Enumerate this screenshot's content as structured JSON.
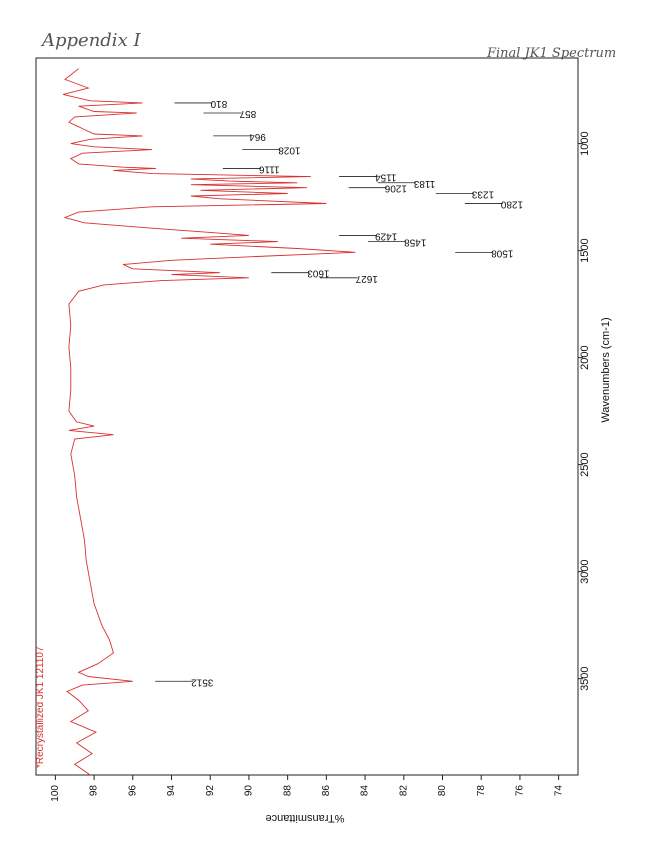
{
  "handwritten": {
    "appendix": "Appendix I",
    "spectrum_title": "Final JK1 Spectrum"
  },
  "chart_data": {
    "type": "line",
    "orientation": "rotated-90-clockwise",
    "xlabel": "Wavenumbers (cm-1)",
    "ylabel": "%Transmittance",
    "xlim": [
      600,
      3950
    ],
    "ylim": [
      73,
      101
    ],
    "x_ticks": [
      "1000",
      "1500",
      "2000",
      "2500",
      "3000",
      "3500"
    ],
    "y_ticks": [
      "100",
      "98",
      "96",
      "94",
      "92",
      "90",
      "88",
      "86",
      "84",
      "82",
      "80",
      "78",
      "76",
      "74"
    ],
    "legend": "*Recrystallized JK1 121107",
    "series_color": "#d93030",
    "grid": false,
    "peak_labels": [
      {
        "wavenumber": 810,
        "label": "810",
        "transmittance": 94.0
      },
      {
        "wavenumber": 857,
        "label": "857",
        "transmittance": 92.5
      },
      {
        "wavenumber": 964,
        "label": "964",
        "transmittance": 92.0
      },
      {
        "wavenumber": 1028,
        "label": "1028",
        "transmittance": 90.5
      },
      {
        "wavenumber": 1116,
        "label": "1116",
        "transmittance": 91.5
      },
      {
        "wavenumber": 1154,
        "label": "1154",
        "transmittance": 85.5
      },
      {
        "wavenumber": 1183,
        "label": "1183",
        "transmittance": 83.5
      },
      {
        "wavenumber": 1206,
        "label": "1206",
        "transmittance": 85.0
      },
      {
        "wavenumber": 1233,
        "label": "1233",
        "transmittance": 80.5
      },
      {
        "wavenumber": 1280,
        "label": "1280",
        "transmittance": 79.0
      },
      {
        "wavenumber": 1429,
        "label": "1429",
        "transmittance": 85.5
      },
      {
        "wavenumber": 1458,
        "label": "1458",
        "transmittance": 84.0
      },
      {
        "wavenumber": 1508,
        "label": "1508",
        "transmittance": 79.5
      },
      {
        "wavenumber": 1603,
        "label": "1603",
        "transmittance": 89.0
      },
      {
        "wavenumber": 1627,
        "label": "1627",
        "transmittance": 86.5
      },
      {
        "wavenumber": 3512,
        "label": "3512",
        "transmittance": 95.0
      }
    ],
    "spectrum": [
      [
        650,
        98.8
      ],
      [
        700,
        99.5
      ],
      [
        740,
        98.3
      ],
      [
        770,
        99.6
      ],
      [
        800,
        98.2
      ],
      [
        810,
        95.5
      ],
      [
        825,
        98.8
      ],
      [
        850,
        98.0
      ],
      [
        857,
        95.8
      ],
      [
        875,
        99.0
      ],
      [
        900,
        99.3
      ],
      [
        930,
        98.6
      ],
      [
        955,
        98.0
      ],
      [
        964,
        95.5
      ],
      [
        980,
        98.2
      ],
      [
        1000,
        99.2
      ],
      [
        1015,
        98.0
      ],
      [
        1028,
        95.0
      ],
      [
        1045,
        98.6
      ],
      [
        1070,
        99.2
      ],
      [
        1095,
        98.8
      ],
      [
        1110,
        96.5
      ],
      [
        1116,
        94.8
      ],
      [
        1125,
        97.0
      ],
      [
        1140,
        95.0
      ],
      [
        1154,
        86.8
      ],
      [
        1165,
        93.0
      ],
      [
        1175,
        91.0
      ],
      [
        1183,
        87.5
      ],
      [
        1192,
        93.0
      ],
      [
        1206,
        87.0
      ],
      [
        1218,
        92.5
      ],
      [
        1233,
        88.0
      ],
      [
        1245,
        93.0
      ],
      [
        1258,
        91.5
      ],
      [
        1280,
        86.0
      ],
      [
        1295,
        95.0
      ],
      [
        1320,
        98.8
      ],
      [
        1345,
        99.5
      ],
      [
        1370,
        98.5
      ],
      [
        1395,
        95.0
      ],
      [
        1415,
        92.0
      ],
      [
        1429,
        90.0
      ],
      [
        1442,
        93.5
      ],
      [
        1458,
        88.5
      ],
      [
        1470,
        92.0
      ],
      [
        1490,
        87.5
      ],
      [
        1508,
        84.5
      ],
      [
        1525,
        89.0
      ],
      [
        1545,
        94.0
      ],
      [
        1565,
        96.5
      ],
      [
        1585,
        96.0
      ],
      [
        1603,
        91.5
      ],
      [
        1612,
        94.0
      ],
      [
        1627,
        90.0
      ],
      [
        1640,
        94.5
      ],
      [
        1660,
        97.5
      ],
      [
        1690,
        98.8
      ],
      [
        1750,
        99.3
      ],
      [
        1850,
        99.2
      ],
      [
        1950,
        99.3
      ],
      [
        2050,
        99.2
      ],
      [
        2150,
        99.2
      ],
      [
        2250,
        99.3
      ],
      [
        2300,
        98.9
      ],
      [
        2320,
        98.0
      ],
      [
        2340,
        99.3
      ],
      [
        2360,
        97.0
      ],
      [
        2380,
        99.0
      ],
      [
        2450,
        99.2
      ],
      [
        2550,
        99.0
      ],
      [
        2650,
        98.9
      ],
      [
        2750,
        98.7
      ],
      [
        2850,
        98.5
      ],
      [
        2950,
        98.4
      ],
      [
        3050,
        98.2
      ],
      [
        3150,
        98.0
      ],
      [
        3250,
        97.6
      ],
      [
        3320,
        97.2
      ],
      [
        3380,
        97.0
      ],
      [
        3430,
        97.8
      ],
      [
        3470,
        98.8
      ],
      [
        3490,
        98.3
      ],
      [
        3512,
        96.0
      ],
      [
        3530,
        98.6
      ],
      [
        3560,
        99.4
      ],
      [
        3600,
        98.8
      ],
      [
        3650,
        98.3
      ],
      [
        3700,
        99.2
      ],
      [
        3750,
        97.9
      ],
      [
        3800,
        98.9
      ],
      [
        3850,
        98.1
      ],
      [
        3900,
        99.0
      ],
      [
        3950,
        98.2
      ]
    ]
  }
}
